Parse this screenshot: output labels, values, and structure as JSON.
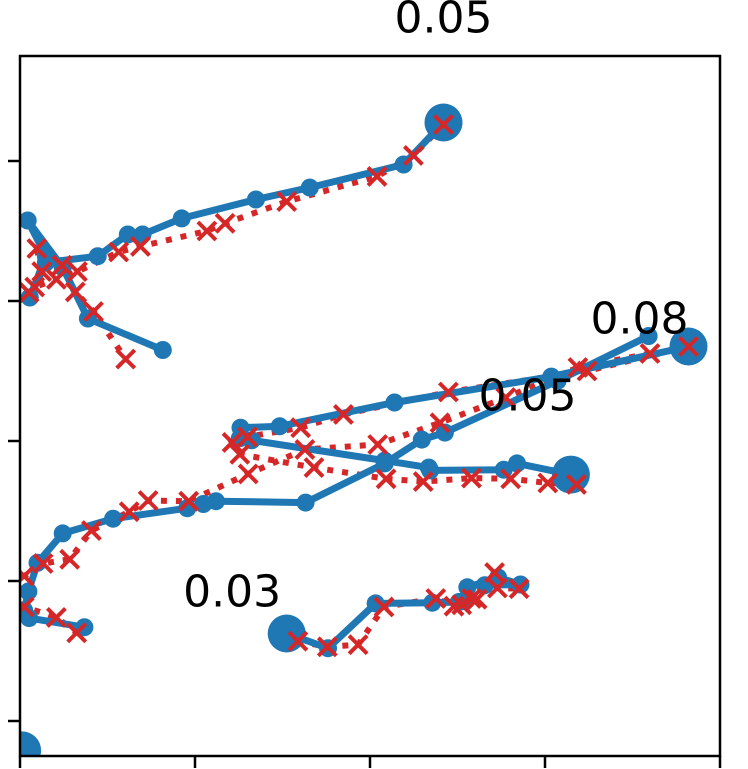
{
  "chart_data": {
    "type": "line",
    "xlim": [
      0,
      1
    ],
    "ylim": [
      0,
      1
    ],
    "x_ticks": [
      0,
      0.25,
      0.5,
      0.75,
      1
    ],
    "y_ticks": [
      0.05,
      0.25,
      0.45,
      0.65,
      0.85
    ],
    "grid": false,
    "annotations": [
      {
        "text": "0.05",
        "x": 0.605,
        "y": 1.055
      },
      {
        "text": "0.08",
        "x": 0.885,
        "y": 0.625
      },
      {
        "text": "0.05",
        "x": 0.725,
        "y": 0.515
      },
      {
        "text": "0.03",
        "x": 0.303,
        "y": 0.235
      }
    ],
    "series": [
      {
        "role": "measured",
        "color": "#1f77b4",
        "tracks": [
          {
            "points": [
              [
                0.605,
                0.905
              ],
              [
                0.548,
                0.845
              ],
              [
                0.414,
                0.812
              ],
              [
                0.337,
                0.795
              ],
              [
                0.231,
                0.768
              ],
              [
                0.175,
                0.745
              ],
              [
                0.154,
                0.745
              ],
              [
                0.111,
                0.714
              ],
              [
                0.037,
                0.705
              ],
              [
                0.014,
                0.655
              ],
              [
                0.037,
                0.714
              ],
              [
                0.011,
                0.765
              ],
              [
                0.061,
                0.698
              ],
              [
                0.097,
                0.625
              ],
              [
                0.204,
                0.58
              ]
            ]
          },
          {
            "points": [
              [
                0.955,
                0.585
              ],
              [
                0.759,
                0.542
              ],
              [
                0.535,
                0.505
              ],
              [
                0.371,
                0.471
              ],
              [
                0.315,
                0.469
              ],
              [
                0.314,
                0.454
              ],
              [
                0.331,
                0.451
              ],
              [
                0.521,
                0.422
              ],
              [
                0.584,
                0.412
              ],
              [
                0.586,
                0.408
              ],
              [
                0.691,
                0.409
              ],
              [
                0.71,
                0.418
              ],
              [
                0.787,
                0.402
              ]
            ]
          },
          {
            "points": [
              [
                0.898,
                0.6
              ],
              [
                0.768,
                0.536
              ],
              [
                0.607,
                0.462
              ],
              [
                0.574,
                0.452
              ],
              [
                0.521,
                0.418
              ],
              [
                0.408,
                0.362
              ],
              [
                0.28,
                0.364
              ],
              [
                0.262,
                0.36
              ],
              [
                0.239,
                0.354
              ],
              [
                0.133,
                0.339
              ],
              [
                0.061,
                0.318
              ],
              [
                0.025,
                0.276
              ],
              [
                0.012,
                0.235
              ],
              [
                0.006,
                0.208
              ],
              [
                0.013,
                0.197
              ],
              [
                0.092,
                0.184
              ]
            ]
          },
          {
            "points": [
              [
                0.381,
                0.175
              ],
              [
                0.44,
                0.154
              ],
              [
                0.508,
                0.218
              ],
              [
                0.589,
                0.219
              ],
              [
                0.627,
                0.22
              ],
              [
                0.636,
                0.221
              ],
              [
                0.639,
                0.241
              ],
              [
                0.683,
                0.255
              ],
              [
                0.715,
                0.245
              ],
              [
                0.664,
                0.244
              ]
            ]
          },
          {
            "points": [
              [
                0.003,
                0.008
              ],
              [
                0.012,
                0.004
              ]
            ]
          }
        ],
        "endpoints": [
          [
            0.605,
            0.905
          ],
          [
            0.955,
            0.585
          ],
          [
            0.787,
            0.402
          ],
          [
            0.381,
            0.175
          ],
          [
            0.003,
            0.008
          ]
        ]
      },
      {
        "role": "estimated",
        "color": "#d62728",
        "tracks": [
          {
            "points": [
              [
                0.605,
                0.902
              ],
              [
                0.562,
                0.858
              ],
              [
                0.51,
                0.828
              ],
              [
                0.381,
                0.792
              ],
              [
                0.293,
                0.761
              ],
              [
                0.267,
                0.75
              ],
              [
                0.172,
                0.728
              ],
              [
                0.141,
                0.72
              ],
              [
                0.082,
                0.692
              ],
              [
                0.052,
                0.681
              ],
              [
                0.021,
                0.67
              ],
              [
                0.013,
                0.662
              ],
              [
                0.031,
                0.692
              ],
              [
                0.024,
                0.725
              ],
              [
                0.06,
                0.701
              ],
              [
                0.079,
                0.663
              ],
              [
                0.105,
                0.635
              ],
              [
                0.151,
                0.567
              ]
            ]
          },
          {
            "points": [
              [
                0.955,
                0.585
              ],
              [
                0.81,
                0.55
              ],
              [
                0.612,
                0.52
              ],
              [
                0.462,
                0.488
              ],
              [
                0.401,
                0.469
              ],
              [
                0.325,
                0.456
              ],
              [
                0.303,
                0.448
              ],
              [
                0.314,
                0.431
              ],
              [
                0.42,
                0.412
              ],
              [
                0.523,
                0.396
              ],
              [
                0.576,
                0.392
              ],
              [
                0.645,
                0.397
              ],
              [
                0.701,
                0.396
              ],
              [
                0.754,
                0.39
              ],
              [
                0.795,
                0.388
              ]
            ]
          },
          {
            "points": [
              [
                0.9,
                0.575
              ],
              [
                0.797,
                0.555
              ],
              [
                0.694,
                0.512
              ],
              [
                0.6,
                0.476
              ],
              [
                0.511,
                0.445
              ],
              [
                0.407,
                0.438
              ],
              [
                0.326,
                0.403
              ],
              [
                0.241,
                0.364
              ],
              [
                0.183,
                0.365
              ],
              [
                0.156,
                0.349
              ],
              [
                0.102,
                0.322
              ],
              [
                0.071,
                0.281
              ],
              [
                0.033,
                0.275
              ],
              [
                0.006,
                0.257
              ],
              [
                0.006,
                0.213
              ],
              [
                0.052,
                0.198
              ],
              [
                0.081,
                0.176
              ]
            ]
          },
          {
            "points": [
              [
                0.397,
                0.164
              ],
              [
                0.439,
                0.156
              ],
              [
                0.483,
                0.159
              ],
              [
                0.52,
                0.213
              ],
              [
                0.594,
                0.225
              ],
              [
                0.62,
                0.214
              ],
              [
                0.631,
                0.216
              ],
              [
                0.645,
                0.225
              ],
              [
                0.653,
                0.224
              ],
              [
                0.678,
                0.262
              ],
              [
                0.713,
                0.239
              ],
              [
                0.682,
                0.24
              ]
            ]
          }
        ],
        "endpoints": []
      }
    ]
  }
}
